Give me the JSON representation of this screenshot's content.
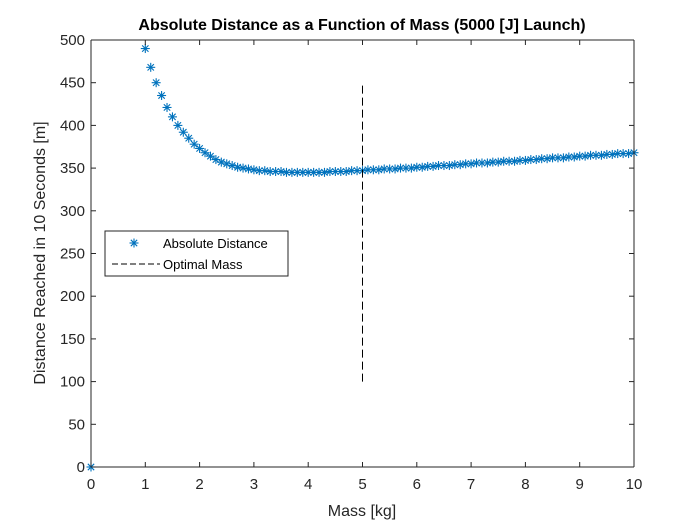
{
  "chart_data": {
    "type": "scatter",
    "title": "Absolute Distance as a Function of Mass (5000 [J] Launch)",
    "xlabel": "Mass [kg]",
    "ylabel": "Distance Reached in 10 Seconds [m]",
    "xlim": [
      0,
      10
    ],
    "ylim": [
      0,
      500
    ],
    "xticks": [
      0,
      1,
      2,
      3,
      4,
      5,
      6,
      7,
      8,
      9,
      10
    ],
    "yticks": [
      0,
      50,
      100,
      150,
      200,
      250,
      300,
      350,
      400,
      450,
      500
    ],
    "grid": false,
    "legend_position": "west",
    "series": [
      {
        "name": "Absolute Distance",
        "marker": "asterisk",
        "color": "#0072BD",
        "x": [
          0,
          1.0,
          1.1,
          1.2,
          1.3,
          1.4,
          1.5,
          1.6,
          1.7,
          1.8,
          1.9,
          2.0,
          2.1,
          2.2,
          2.3,
          2.4,
          2.5,
          2.6,
          2.7,
          2.8,
          2.9,
          3.0,
          3.1,
          3.2,
          3.3,
          3.4,
          3.5,
          3.6,
          3.7,
          3.8,
          3.9,
          4.0,
          4.1,
          4.2,
          4.3,
          4.4,
          4.5,
          4.6,
          4.7,
          4.8,
          4.9,
          5.0,
          5.1,
          5.2,
          5.3,
          5.4,
          5.5,
          5.6,
          5.7,
          5.8,
          5.9,
          6.0,
          6.1,
          6.2,
          6.3,
          6.4,
          6.5,
          6.6,
          6.7,
          6.8,
          6.9,
          7.0,
          7.1,
          7.2,
          7.3,
          7.4,
          7.5,
          7.6,
          7.7,
          7.8,
          7.9,
          8.0,
          8.1,
          8.2,
          8.3,
          8.4,
          8.5,
          8.6,
          8.7,
          8.8,
          8.9,
          9.0,
          9.1,
          9.2,
          9.3,
          9.4,
          9.5,
          9.6,
          9.7,
          9.8,
          9.9,
          10.0
        ],
        "y": [
          0,
          490,
          468,
          450,
          435,
          421,
          410,
          400,
          392,
          385,
          378,
          373,
          368,
          364,
          360,
          357,
          355,
          353,
          351,
          350,
          349,
          348,
          347,
          347,
          346,
          346,
          346,
          345,
          345,
          345,
          345,
          345,
          345,
          345,
          345,
          346,
          346,
          346,
          346,
          347,
          347,
          347,
          348,
          348,
          348,
          349,
          349,
          349,
          350,
          350,
          350,
          351,
          351,
          352,
          352,
          353,
          353,
          353,
          354,
          354,
          355,
          355,
          356,
          356,
          356,
          357,
          357,
          358,
          358,
          358,
          359,
          359,
          360,
          360,
          361,
          361,
          362,
          362,
          362,
          363,
          363,
          364,
          364,
          365,
          365,
          365,
          366,
          366,
          367,
          367,
          367,
          368
        ]
      },
      {
        "name": "Optimal Mass",
        "line_style": "dashed",
        "color": "#000000",
        "x": [
          5,
          5
        ],
        "y": [
          100,
          450
        ]
      }
    ]
  }
}
